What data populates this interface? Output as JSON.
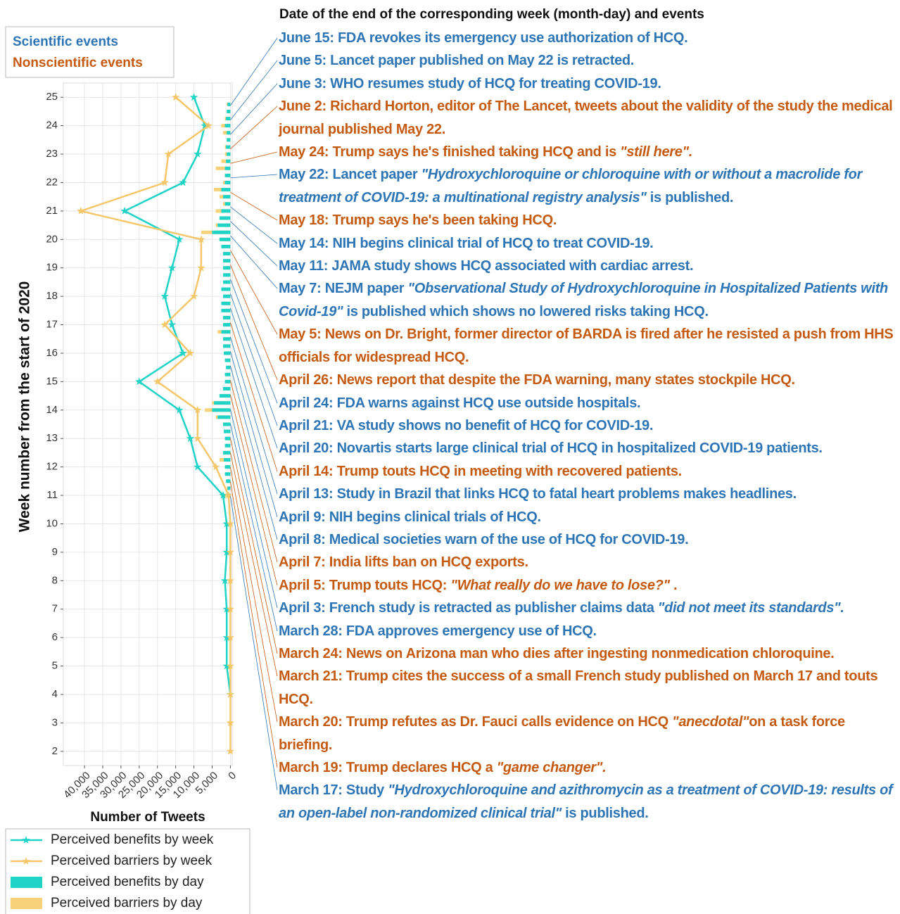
{
  "header": "Date of the end of the corresponding week (month-day) and events",
  "event_legend": [
    {
      "label": "Scientific events",
      "color": "#2e75b6"
    },
    {
      "label": "Nonscientific events",
      "color": "#c55a11"
    }
  ],
  "events": [
    {
      "color": "#2e75b6",
      "segments": [
        "June 15: FDA revokes its emergency use authorization of HCQ."
      ]
    },
    {
      "color": "#2e75b6",
      "segments": [
        "June 5: Lancet paper published on May 22 is retracted."
      ]
    },
    {
      "color": "#2e75b6",
      "segments": [
        "June 3: WHO resumes study of HCQ for treating COVID-19."
      ]
    },
    {
      "color": "#c55a11",
      "segments": [
        "June 2: Richard Horton, editor of The Lancet, tweets about the validity of the study the medical journal published May 22."
      ]
    },
    {
      "color": "#c55a11",
      "segments": [
        "May 24: Trump says he's finished taking HCQ and is ",
        {
          "text": "\"still here\".",
          "italic": true
        }
      ]
    },
    {
      "color": "#2e75b6",
      "segments": [
        "May 22: Lancet paper ",
        {
          "text": "\"Hydroxychloroquine or chloroquine with or without a macrolide for treatment of COVID-19: a multinational registry analysis\"",
          "italic": true
        },
        " is published."
      ]
    },
    {
      "color": "#c55a11",
      "segments": [
        "May 18: Trump says he's been taking HCQ."
      ]
    },
    {
      "color": "#2e75b6",
      "segments": [
        "May 14: NIH begins clinical trial of HCQ to treat COVID-19."
      ]
    },
    {
      "color": "#2e75b6",
      "segments": [
        "May 11: JAMA study shows HCQ associated with cardiac arrest."
      ]
    },
    {
      "color": "#2e75b6",
      "segments": [
        "May 7: NEJM paper ",
        {
          "text": "\"Observational Study of Hydroxychloroquine in Hospitalized Patients with Covid-19\"",
          "italic": true
        },
        " is published which shows no lowered risks taking HCQ."
      ]
    },
    {
      "color": "#c55a11",
      "segments": [
        "May 5: News on Dr. Bright, former director of BARDA is fired after he resisted a push from HHS officials for widespread HCQ."
      ]
    },
    {
      "color": "#c55a11",
      "segments": [
        "April 26: News report that despite the FDA warning, many states stockpile HCQ."
      ]
    },
    {
      "color": "#2e75b6",
      "segments": [
        "April 24: FDA warns against HCQ use outside hospitals."
      ]
    },
    {
      "color": "#2e75b6",
      "segments": [
        "April 21: VA study shows no benefit of HCQ for COVID-19."
      ]
    },
    {
      "color": "#2e75b6",
      "segments": [
        "April 20: Novartis starts large clinical trial of HCQ in hospitalized COVID-19 patients."
      ]
    },
    {
      "color": "#c55a11",
      "segments": [
        "April 14: Trump touts HCQ in meeting with recovered patients."
      ]
    },
    {
      "color": "#2e75b6",
      "segments": [
        "April 13: Study in Brazil that links HCQ to fatal heart problems makes headlines."
      ]
    },
    {
      "color": "#2e75b6",
      "segments": [
        "April 9: NIH begins clinical trials of HCQ."
      ]
    },
    {
      "color": "#2e75b6",
      "segments": [
        "April 8: Medical societies warn of the use of HCQ for COVID-19."
      ]
    },
    {
      "color": "#c55a11",
      "segments": [
        "April 7: India lifts ban on HCQ exports."
      ]
    },
    {
      "color": "#c55a11",
      "segments": [
        "April 5: Trump touts HCQ: ",
        {
          "text": "\"What really do we have to lose?\"",
          "italic": true
        },
        " ."
      ]
    },
    {
      "color": "#2e75b6",
      "segments": [
        "April 3: French study is retracted as publisher claims data ",
        {
          "text": "\"did not meet its standards\".",
          "italic": true
        }
      ]
    },
    {
      "color": "#2e75b6",
      "segments": [
        "March 28: FDA approves emergency use of HCQ."
      ]
    },
    {
      "color": "#c55a11",
      "segments": [
        "March 24: News on Arizona man who dies after ingesting nonmedication chloroquine."
      ]
    },
    {
      "color": "#c55a11",
      "segments": [
        "March 21: Trump cites the success of a small French study published on March 17 and touts HCQ."
      ]
    },
    {
      "color": "#c55a11",
      "segments": [
        "March 20: Trump refutes as Dr. Fauci calls evidence on HCQ ",
        {
          "text": "\"anecdotal\"",
          "italic": true
        },
        "on a task force briefing."
      ]
    },
    {
      "color": "#c55a11",
      "segments": [
        "March 19: Trump declares HCQ a ",
        {
          "text": "\"game changer\".",
          "italic": true
        }
      ]
    },
    {
      "color": "#2e75b6",
      "segments": [
        "March 17: Study ",
        {
          "text": "\"Hydroxychloroquine and azithromycin as a treatment of COVID-19: results of an open-label non-randomized clinical trial\"",
          "italic": true
        },
        " is published."
      ]
    }
  ],
  "chart_data": {
    "type": "line",
    "x_label": "Number of Tweets",
    "y_label": "Week number from the start of 2020",
    "x_inverted": true,
    "grid": true,
    "xlim": [
      -500,
      45800
    ],
    "ylim": [
      1.5,
      25.5
    ],
    "xticks": [
      0,
      {
        "value": 5000,
        "label": "5,000"
      },
      {
        "value": 10000,
        "label": "10,000"
      },
      {
        "value": 15000,
        "label": "15,000"
      },
      {
        "value": 20000,
        "label": "20,000"
      },
      {
        "value": 25000,
        "label": "25,000"
      },
      {
        "value": 30000,
        "label": "30,000"
      },
      {
        "value": 35000,
        "label": "35,000"
      },
      {
        "value": 40000,
        "label": "40,000"
      }
    ],
    "yticks": [
      2,
      3,
      4,
      5,
      6,
      7,
      8,
      9,
      10,
      11,
      12,
      13,
      14,
      15,
      16,
      17,
      18,
      19,
      20,
      21,
      22,
      23,
      24,
      25
    ],
    "x": [
      2,
      3,
      4,
      5,
      6,
      7,
      8,
      9,
      10,
      11,
      12,
      13,
      14,
      15,
      16,
      17,
      18,
      19,
      20,
      21,
      22,
      23,
      24,
      25
    ],
    "series": [
      {
        "name": "Perceived  benefits by week",
        "color": "#1fd3c6",
        "values": [
          null,
          null,
          0,
          1000,
          1000,
          1000,
          1500,
          1000,
          1000,
          2000,
          9000,
          11000,
          14000,
          25000,
          13000,
          16000,
          18000,
          16000,
          14000,
          29000,
          13000,
          9000,
          7000,
          10000
        ]
      },
      {
        "name": "Perceived  barriers by week",
        "color": "#f5c76b",
        "values": [
          0,
          0,
          0,
          0,
          0,
          0,
          0,
          0,
          0,
          500,
          4000,
          9000,
          9000,
          20000,
          11000,
          18000,
          10000,
          8000,
          8000,
          41000,
          18000,
          17000,
          6000,
          15000
        ]
      }
    ],
    "daily_x": [
      11,
      11.25,
      11.5,
      11.75,
      12,
      12.25,
      12.5,
      12.75,
      13,
      13.25,
      13.5,
      13.75,
      14,
      14.25,
      14.5,
      14.75,
      15,
      15.25,
      15.5,
      15.75,
      16,
      16.25,
      16.5,
      16.75,
      17,
      17.25,
      17.5,
      17.75,
      18,
      18.25,
      18.5,
      18.75,
      19,
      19.25,
      19.5,
      19.75,
      20,
      20.25,
      20.5,
      20.75,
      21,
      21.25,
      21.5,
      21.75,
      22,
      22.25,
      22.5,
      22.75,
      23,
      23.25,
      23.5,
      23.75,
      24,
      24.25,
      24.5,
      24.75
    ],
    "daily_series": [
      {
        "name": "Perceived barriers by day",
        "color": "#f8d27a",
        "values": [
          2500,
          1000,
          800,
          1000,
          1500,
          3000,
          1500,
          1000,
          1000,
          1500,
          2000,
          4000,
          7000,
          5000,
          2000,
          1500,
          1000,
          1000,
          800,
          1000,
          1500,
          1500,
          2000,
          3500,
          2000,
          1500,
          1000,
          1500,
          1000,
          1000,
          1000,
          1000,
          1000,
          1000,
          1200,
          1500,
          3000,
          8000,
          4000,
          2500,
          4000,
          2000,
          3000,
          4500,
          2000,
          1500,
          4000,
          2500,
          1500,
          1500,
          1000,
          2000,
          2500,
          1500,
          1000,
          1000
        ]
      },
      {
        "name": "Perceived benefits by day",
        "color": "#1fd3c6",
        "values": [
          1000,
          800,
          1200,
          1500,
          1500,
          1800,
          2000,
          1500,
          1500,
          1800,
          2000,
          3500,
          5000,
          4500,
          3000,
          2000,
          1500,
          1500,
          1200,
          1500,
          1800,
          2000,
          2000,
          2500,
          2000,
          2000,
          2500,
          2500,
          2000,
          2500,
          2000,
          2000,
          2000,
          2000,
          2000,
          2500,
          3000,
          5000,
          3500,
          3000,
          2500,
          1500,
          2000,
          2500,
          1500,
          1500,
          1500,
          1200,
          1000,
          1200,
          1000,
          1000,
          1500,
          1200,
          1000,
          800
        ]
      }
    ]
  }
}
